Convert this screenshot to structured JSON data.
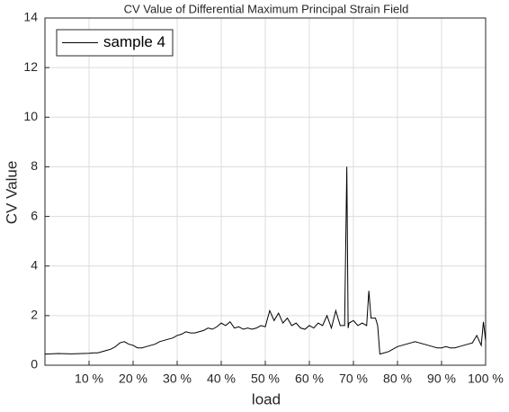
{
  "chart_data": {
    "type": "line",
    "title": "CV Value of Differential Maximum Principal Strain Field",
    "xlabel": "load",
    "ylabel": "CV Value",
    "x": [
      0,
      3,
      6,
      10,
      11,
      12,
      13,
      14,
      15,
      16,
      17,
      18,
      19,
      20,
      21,
      22,
      23,
      24,
      25,
      26,
      27,
      28,
      29,
      30,
      31,
      32,
      33,
      34,
      35,
      36,
      37,
      38,
      39,
      40,
      41,
      42,
      43,
      44,
      45,
      46,
      47,
      48,
      49,
      50,
      51,
      52,
      53,
      54,
      55,
      56,
      57,
      58,
      59,
      60,
      61,
      62,
      63,
      64,
      65,
      66,
      67,
      68,
      68.5,
      68.8,
      69,
      70,
      71,
      72,
      73,
      73.5,
      74,
      75,
      75.5,
      76,
      77,
      78,
      79,
      80,
      81,
      82,
      83,
      84,
      85,
      86,
      87,
      88,
      89,
      90,
      91,
      92,
      93,
      94,
      95,
      96,
      97,
      98,
      99,
      99.5,
      100
    ],
    "series": [
      {
        "name": "sample 4",
        "color": "#000000",
        "values": [
          0.45,
          0.47,
          0.46,
          0.48,
          0.5,
          0.5,
          0.55,
          0.6,
          0.65,
          0.75,
          0.9,
          0.95,
          0.85,
          0.8,
          0.7,
          0.7,
          0.75,
          0.8,
          0.85,
          0.95,
          1.0,
          1.05,
          1.1,
          1.2,
          1.25,
          1.35,
          1.3,
          1.3,
          1.35,
          1.4,
          1.5,
          1.45,
          1.55,
          1.7,
          1.6,
          1.75,
          1.5,
          1.55,
          1.45,
          1.5,
          1.45,
          1.5,
          1.6,
          1.55,
          2.2,
          1.8,
          2.1,
          1.7,
          1.9,
          1.6,
          1.7,
          1.5,
          1.45,
          1.6,
          1.5,
          1.7,
          1.6,
          2.0,
          1.5,
          2.2,
          1.6,
          1.6,
          8.0,
          1.5,
          1.7,
          1.8,
          1.6,
          1.7,
          1.6,
          3.0,
          1.9,
          1.9,
          1.6,
          0.45,
          0.5,
          0.55,
          0.65,
          0.75,
          0.8,
          0.85,
          0.9,
          0.95,
          0.9,
          0.85,
          0.8,
          0.75,
          0.7,
          0.7,
          0.75,
          0.7,
          0.7,
          0.75,
          0.8,
          0.85,
          0.9,
          1.2,
          0.8,
          1.75,
          1.0
        ]
      }
    ],
    "xlim": [
      0,
      100
    ],
    "xticks": [
      {
        "value": 10,
        "label": "10 %"
      },
      {
        "value": 20,
        "label": "20 %"
      },
      {
        "value": 30,
        "label": "30 %"
      },
      {
        "value": 40,
        "label": "40 %"
      },
      {
        "value": 50,
        "label": "50 %"
      },
      {
        "value": 60,
        "label": "60 %"
      },
      {
        "value": 70,
        "label": "70 %"
      },
      {
        "value": 80,
        "label": "80 %"
      },
      {
        "value": 90,
        "label": "90 %"
      },
      {
        "value": 100,
        "label": "100 %"
      }
    ],
    "ylim": [
      0,
      14
    ],
    "yticks": [
      0,
      2,
      4,
      6,
      8,
      10,
      12,
      14
    ],
    "grid": true,
    "legend": "upper left"
  }
}
